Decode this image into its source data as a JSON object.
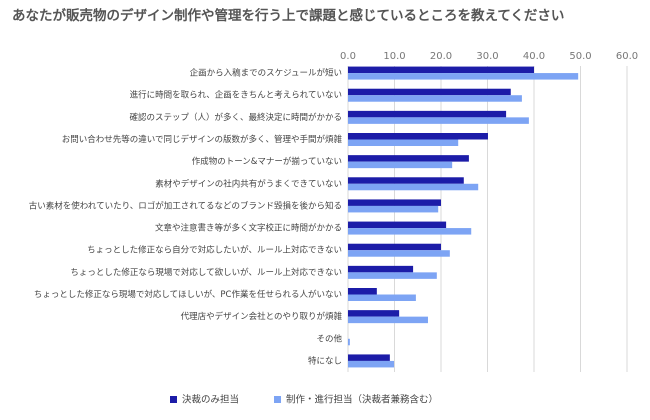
{
  "chart_data": {
    "type": "hbar",
    "title": "あなたが販売物のデザイン制作や管理を行う上で課題と感じているところを教えてください",
    "categories": [
      "企画から入稿までのスケジュールが短い",
      "進行に時間を取られ、企画をきちんと考えられていない",
      "確認のステップ（人）が多く、最終決定に時間がかかる",
      "お問い合わせ先等の違いで同じデザインの版数が多く、管理や手間が煩雑",
      "作成物のトーン&マナーが揃っていない",
      "素材やデザインの社内共有がうまくできていない",
      "古い素材を使われていたり、ロゴが加工されてるなどのブランド毀損を後から知る",
      "文章や注意書き等が多く文字校正に時間がかかる",
      "ちょっとした修正なら自分で対応したいが、ルール上対応できない",
      "ちょっとした修正なら現場で対応して欲しいが、ルール上対応できない",
      "ちょっとした修正なら現場で対応してほしいが、PC作業を任せられる人がいない",
      "代理店やデザイン会社とのやり取りが煩雑",
      "その他",
      "特になし"
    ],
    "series": [
      {
        "name": "決裁のみ担当",
        "color": "#1c1ca8",
        "values": [
          40.0,
          35.0,
          34.0,
          30.1,
          26.0,
          24.9,
          20.0,
          21.1,
          20.0,
          14.0,
          6.2,
          11.0,
          0,
          9.0
        ]
      },
      {
        "name": "制作・進行担当（決裁者兼務含む）",
        "color": "#7da4f4",
        "values": [
          49.5,
          37.4,
          38.9,
          23.7,
          22.4,
          28.0,
          19.4,
          26.5,
          21.9,
          19.1,
          14.6,
          17.2,
          0.4,
          9.9
        ]
      }
    ],
    "xlim": [
      0,
      60
    ],
    "xticks": [
      {
        "value": 0,
        "label": "0.0"
      },
      {
        "value": 10,
        "label": "10.0"
      },
      {
        "value": 20,
        "label": "20.0"
      },
      {
        "value": 30,
        "label": "30.0"
      },
      {
        "value": 40,
        "label": "40.0"
      },
      {
        "value": 50,
        "label": "50.0"
      },
      {
        "value": 60,
        "label": "60.0"
      }
    ],
    "grid": true,
    "legend": "bottom"
  }
}
